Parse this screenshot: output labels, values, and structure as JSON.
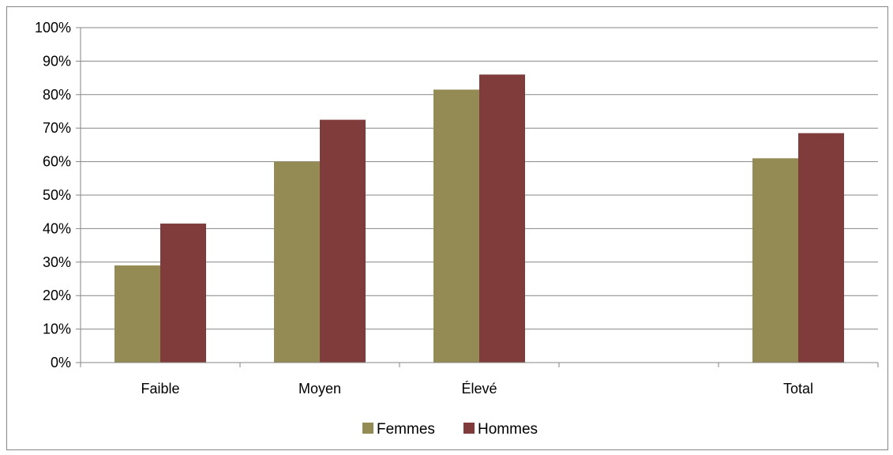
{
  "chart_data": {
    "type": "bar",
    "categories": [
      "Faible",
      "Moyen",
      "Élevé",
      "",
      "Total"
    ],
    "series": [
      {
        "name": "Femmes",
        "color": "#948A54",
        "values": [
          29,
          60,
          81.5,
          null,
          61
        ]
      },
      {
        "name": "Hommes",
        "color": "#7F3C3A",
        "values": [
          41.5,
          72.5,
          86,
          null,
          68.5
        ]
      }
    ],
    "ylim": [
      0,
      100
    ],
    "yticks": [
      "0%",
      "10%",
      "20%",
      "30%",
      "40%",
      "50%",
      "60%",
      "70%",
      "80%",
      "90%",
      "100%"
    ],
    "grid": true,
    "legend_position": "bottom",
    "title": "",
    "xlabel": "",
    "ylabel": ""
  }
}
